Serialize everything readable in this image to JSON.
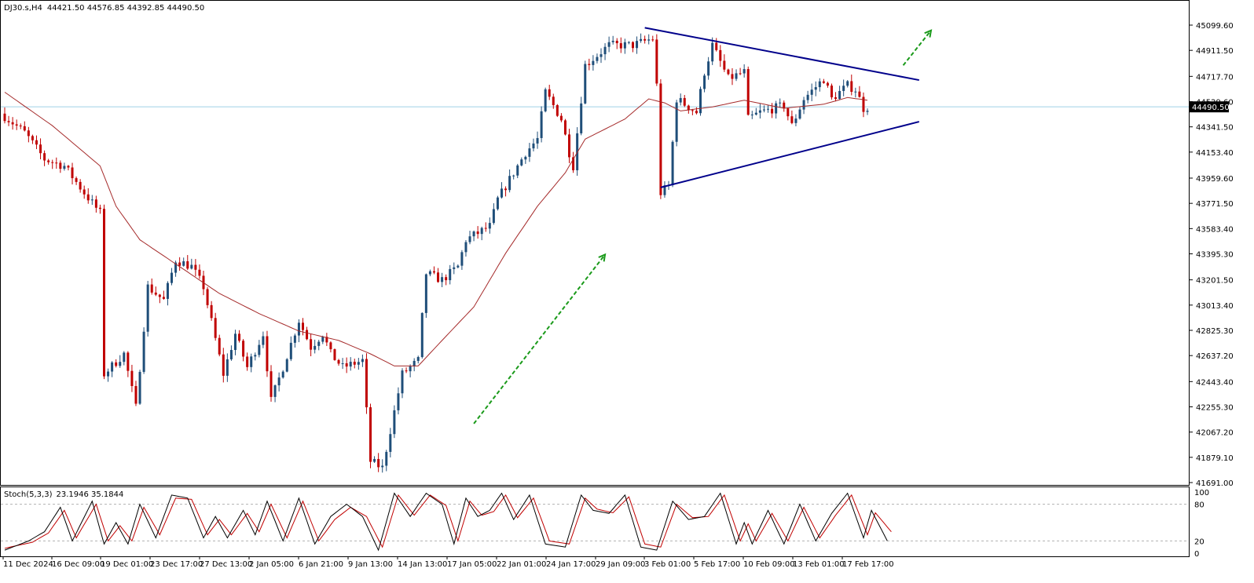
{
  "header": {
    "title": "DJ30.s,H4",
    "ohlc": "44421.50 44576.85 44392.85 44490.50"
  },
  "stoch_header": {
    "label": "Stoch(5,3,3)",
    "values": "23.1946 35.1844"
  },
  "colors": {
    "bull": "#1f4e79",
    "bear": "#c00000",
    "ma": "#a52a2a",
    "trendline": "#00008b",
    "arrow": "#1a9a1a",
    "price_line": "#9fd0e8",
    "stoch_main": "#000000",
    "stoch_signal": "#c00000",
    "level_line": "#b0b0b0"
  },
  "chart_data": {
    "type": "candlestick",
    "symbol": "DJ30.s",
    "timeframe": "H4",
    "last_price": 44490.5,
    "last_price_label": "44490.50",
    "y_ticks": [
      "45099.60",
      "44911.50",
      "44717.70",
      "44529.60",
      "44341.50",
      "44153.40",
      "43959.60",
      "43771.50",
      "43583.40",
      "43395.30",
      "43201.50",
      "43013.40",
      "42825.30",
      "42637.20",
      "42443.40",
      "42255.30",
      "42067.20",
      "41879.10",
      "41691.00"
    ],
    "ylim": [
      41691.0,
      45191.0
    ],
    "x_labels": [
      "11 Dec 2024",
      "16 Dec 09:00",
      "19 Dec 01:00",
      "23 Dec 17:00",
      "27 Dec 13:00",
      "2 Jan 05:00",
      "6 Jan 21:00",
      "9 Jan 13:00",
      "14 Jan 13:00",
      "17 Jan 05:00",
      "22 Jan 01:00",
      "24 Jan 17:00",
      "29 Jan 09:00",
      "3 Feb 01:00",
      "5 Feb 17:00",
      "10 Feb 09:00",
      "13 Feb 01:00",
      "17 Feb 17:00"
    ],
    "bar_count": 218,
    "close_anchors": [
      [
        0,
        44420
      ],
      [
        5,
        44300
      ],
      [
        10,
        44100
      ],
      [
        15,
        44050
      ],
      [
        20,
        43850
      ],
      [
        24,
        43700
      ],
      [
        25,
        42500
      ],
      [
        30,
        42650
      ],
      [
        33,
        42250
      ],
      [
        36,
        43150
      ],
      [
        40,
        43050
      ],
      [
        43,
        43350
      ],
      [
        47,
        43300
      ],
      [
        50,
        43150
      ],
      [
        55,
        42500
      ],
      [
        58,
        42800
      ],
      [
        61,
        42550
      ],
      [
        65,
        42800
      ],
      [
        67,
        42300
      ],
      [
        70,
        42550
      ],
      [
        74,
        42900
      ],
      [
        77,
        42700
      ],
      [
        80,
        42800
      ],
      [
        82,
        42650
      ],
      [
        85,
        42550
      ],
      [
        90,
        42600
      ],
      [
        92,
        41850
      ],
      [
        95,
        41800
      ],
      [
        100,
        42500
      ],
      [
        104,
        42600
      ],
      [
        106,
        43250
      ],
      [
        110,
        43200
      ],
      [
        114,
        43300
      ],
      [
        116,
        43500
      ],
      [
        122,
        43600
      ],
      [
        124,
        43800
      ],
      [
        127,
        43950
      ],
      [
        131,
        44150
      ],
      [
        134,
        44250
      ],
      [
        136,
        44600
      ],
      [
        140,
        44400
      ],
      [
        142,
        44150
      ],
      [
        143,
        44050
      ],
      [
        146,
        44800
      ],
      [
        152,
        44950
      ],
      [
        158,
        44950
      ],
      [
        163,
        45000
      ],
      [
        164,
        44650
      ],
      [
        165,
        43850
      ],
      [
        167,
        43900
      ],
      [
        169,
        44550
      ],
      [
        174,
        44450
      ],
      [
        176,
        44750
      ],
      [
        178,
        44950
      ],
      [
        182,
        44700
      ],
      [
        186,
        44750
      ],
      [
        187,
        44400
      ],
      [
        190,
        44450
      ],
      [
        196,
        44500
      ],
      [
        198,
        44350
      ],
      [
        201,
        44550
      ],
      [
        206,
        44700
      ],
      [
        208,
        44550
      ],
      [
        212,
        44650
      ],
      [
        214,
        44620
      ],
      [
        216,
        44480
      ],
      [
        217,
        44490
      ]
    ],
    "ma_anchors": [
      [
        0,
        44600
      ],
      [
        12,
        44350
      ],
      [
        24,
        44050
      ],
      [
        28,
        43750
      ],
      [
        34,
        43500
      ],
      [
        44,
        43300
      ],
      [
        54,
        43100
      ],
      [
        64,
        42950
      ],
      [
        74,
        42820
      ],
      [
        84,
        42750
      ],
      [
        92,
        42650
      ],
      [
        98,
        42560
      ],
      [
        104,
        42560
      ],
      [
        110,
        42750
      ],
      [
        118,
        43000
      ],
      [
        126,
        43400
      ],
      [
        134,
        43750
      ],
      [
        141,
        44000
      ],
      [
        146,
        44250
      ],
      [
        156,
        44400
      ],
      [
        162,
        44550
      ],
      [
        166,
        44520
      ],
      [
        170,
        44460
      ],
      [
        178,
        44490
      ],
      [
        186,
        44540
      ],
      [
        196,
        44480
      ],
      [
        206,
        44510
      ],
      [
        212,
        44560
      ],
      [
        217,
        44540
      ]
    ],
    "trendlines": [
      {
        "from": [
          161,
          45080
        ],
        "to": [
          230,
          44690
        ]
      },
      {
        "from": [
          165,
          43890
        ],
        "to": [
          230,
          44380
        ]
      }
    ],
    "arrows": [
      {
        "from": [
          118,
          42130
        ],
        "to": [
          151,
          43390
        ]
      },
      {
        "from": [
          226,
          44800
        ],
        "to": [
          233,
          45060
        ]
      }
    ],
    "stochastic": {
      "params": "5,3,3",
      "main_last": 23.1946,
      "signal_last": 35.1844,
      "levels": [
        80,
        20
      ],
      "axis_labels": [
        "100",
        "80",
        "20",
        "0"
      ],
      "main_anchors": [
        [
          0,
          5
        ],
        [
          6,
          20
        ],
        [
          10,
          35
        ],
        [
          14,
          75
        ],
        [
          17,
          20
        ],
        [
          22,
          85
        ],
        [
          25,
          15
        ],
        [
          28,
          50
        ],
        [
          31,
          15
        ],
        [
          34,
          80
        ],
        [
          38,
          25
        ],
        [
          42,
          95
        ],
        [
          46,
          90
        ],
        [
          50,
          25
        ],
        [
          53,
          60
        ],
        [
          56,
          25
        ],
        [
          60,
          70
        ],
        [
          63,
          30
        ],
        [
          66,
          85
        ],
        [
          70,
          20
        ],
        [
          74,
          90
        ],
        [
          78,
          15
        ],
        [
          82,
          60
        ],
        [
          86,
          80
        ],
        [
          90,
          60
        ],
        [
          94,
          5
        ],
        [
          98,
          98
        ],
        [
          102,
          60
        ],
        [
          106,
          98
        ],
        [
          110,
          80
        ],
        [
          113,
          15
        ],
        [
          116,
          90
        ],
        [
          119,
          60
        ],
        [
          122,
          70
        ],
        [
          125,
          98
        ],
        [
          128,
          55
        ],
        [
          132,
          95
        ],
        [
          136,
          15
        ],
        [
          141,
          10
        ],
        [
          145,
          95
        ],
        [
          148,
          70
        ],
        [
          152,
          65
        ],
        [
          156,
          95
        ],
        [
          160,
          10
        ],
        [
          164,
          5
        ],
        [
          168,
          85
        ],
        [
          172,
          55
        ],
        [
          176,
          60
        ],
        [
          180,
          98
        ],
        [
          184,
          15
        ],
        [
          186,
          50
        ],
        [
          188,
          15
        ],
        [
          192,
          70
        ],
        [
          196,
          15
        ],
        [
          200,
          80
        ],
        [
          204,
          20
        ],
        [
          208,
          65
        ],
        [
          212,
          98
        ],
        [
          216,
          25
        ],
        [
          218,
          70
        ],
        [
          222,
          20
        ]
      ],
      "signal_anchors": [
        [
          0,
          8
        ],
        [
          7,
          18
        ],
        [
          11,
          33
        ],
        [
          15,
          70
        ],
        [
          18,
          25
        ],
        [
          23,
          80
        ],
        [
          26,
          20
        ],
        [
          29,
          45
        ],
        [
          32,
          20
        ],
        [
          35,
          75
        ],
        [
          39,
          30
        ],
        [
          43,
          90
        ],
        [
          47,
          88
        ],
        [
          51,
          30
        ],
        [
          54,
          55
        ],
        [
          57,
          30
        ],
        [
          61,
          65
        ],
        [
          64,
          35
        ],
        [
          67,
          80
        ],
        [
          71,
          25
        ],
        [
          75,
          85
        ],
        [
          79,
          20
        ],
        [
          83,
          55
        ],
        [
          87,
          75
        ],
        [
          91,
          60
        ],
        [
          95,
          10
        ],
        [
          99,
          95
        ],
        [
          103,
          62
        ],
        [
          107,
          95
        ],
        [
          111,
          78
        ],
        [
          114,
          20
        ],
        [
          117,
          85
        ],
        [
          120,
          62
        ],
        [
          123,
          68
        ],
        [
          126,
          95
        ],
        [
          129,
          58
        ],
        [
          133,
          90
        ],
        [
          137,
          20
        ],
        [
          142,
          15
        ],
        [
          146,
          90
        ],
        [
          149,
          72
        ],
        [
          153,
          66
        ],
        [
          157,
          92
        ],
        [
          161,
          15
        ],
        [
          165,
          10
        ],
        [
          169,
          80
        ],
        [
          173,
          58
        ],
        [
          177,
          60
        ],
        [
          181,
          95
        ],
        [
          185,
          20
        ],
        [
          187,
          48
        ],
        [
          189,
          20
        ],
        [
          193,
          65
        ],
        [
          197,
          20
        ],
        [
          201,
          75
        ],
        [
          205,
          25
        ],
        [
          209,
          62
        ],
        [
          213,
          95
        ],
        [
          217,
          30
        ],
        [
          219,
          66
        ],
        [
          223,
          35
        ]
      ]
    }
  }
}
